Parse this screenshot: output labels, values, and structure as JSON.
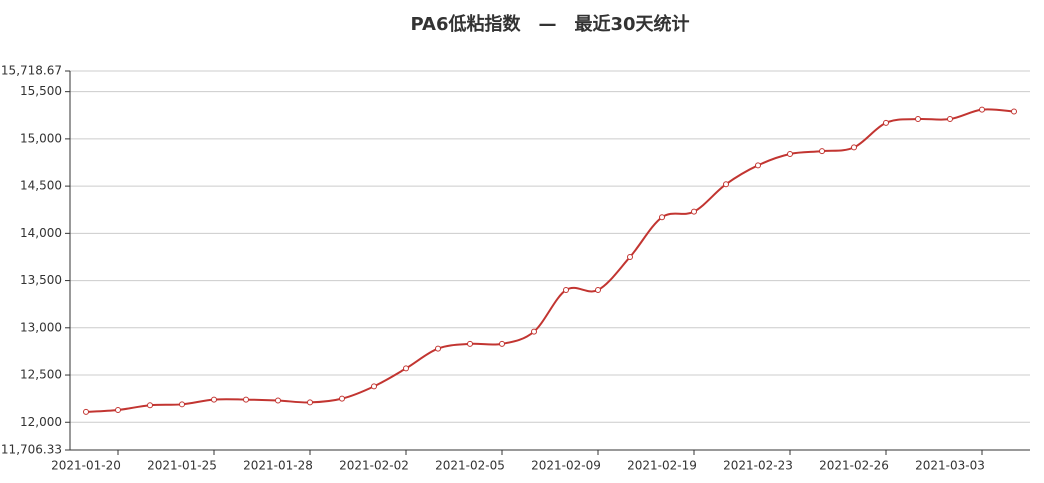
{
  "chart_data": {
    "type": "line",
    "title": "PA6低粘指数　—　最近30天统计",
    "categories": [
      "2021-01-20",
      null,
      null,
      "2021-01-25",
      null,
      null,
      "2021-01-28",
      null,
      null,
      "2021-02-02",
      null,
      null,
      "2021-02-05",
      null,
      null,
      "2021-02-09",
      null,
      null,
      "2021-02-19",
      null,
      null,
      "2021-02-23",
      null,
      null,
      "2021-02-26",
      null,
      null,
      "2021-03-03",
      null,
      null
    ],
    "values": [
      12110,
      12130,
      12180,
      12190,
      12240,
      12240,
      12230,
      12210,
      12250,
      12380,
      12570,
      12780,
      12830,
      12830,
      12960,
      13400,
      13400,
      13750,
      14170,
      14230,
      14520,
      14720,
      14840,
      14870,
      14910,
      15170,
      15210,
      15210,
      15310,
      15290
    ],
    "color": "#c23531",
    "ylim": [
      11706.33,
      15718.67
    ],
    "yticks": [
      {
        "value": 11706.33,
        "label": "11,706.33"
      },
      {
        "value": 12000,
        "label": "12,000"
      },
      {
        "value": 12500,
        "label": "12,500"
      },
      {
        "value": 13000,
        "label": "13,000"
      },
      {
        "value": 13500,
        "label": "13,500"
      },
      {
        "value": 14000,
        "label": "14,000"
      },
      {
        "value": 14500,
        "label": "14,500"
      },
      {
        "value": 15000,
        "label": "15,000"
      },
      {
        "value": 15500,
        "label": "15,500"
      },
      {
        "value": 15718.67,
        "label": "15,718.67"
      }
    ],
    "grid": true,
    "smooth": true
  }
}
